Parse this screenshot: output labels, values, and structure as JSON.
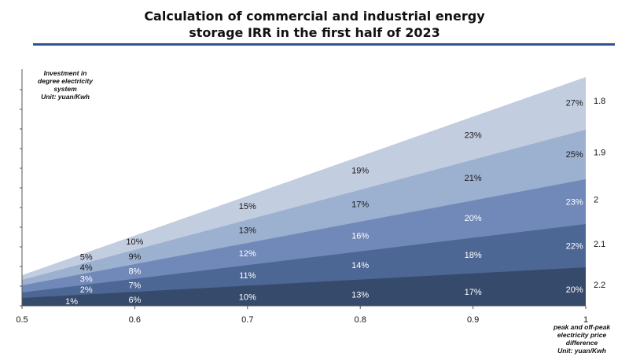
{
  "title_line1": "Calculation of commercial and industrial energy",
  "title_line2": "storage IRR in the first half of 2023",
  "y_axis_label": [
    "Investment in",
    "degree electricity",
    "system",
    "Unit: yuan/Kwh"
  ],
  "x_axis_label": [
    "peak and off-peak",
    "electricity price",
    "difference",
    "Unit: yuan/Kwh"
  ],
  "chart_data": {
    "type": "area",
    "x_ticks": [
      "0.5",
      "0.6",
      "0.7",
      "0.8",
      "0.9",
      "1"
    ],
    "xlim": [
      0.5,
      1.0
    ],
    "series": [
      {
        "name": "1.8",
        "color": "#c3cde0",
        "text_color": "#1a1a1a",
        "labels": [
          {
            "x": 0.557,
            "text": "5%"
          },
          {
            "x": 0.6,
            "text": "10%"
          },
          {
            "x": 0.7,
            "text": "15%"
          },
          {
            "x": 0.8,
            "text": "19%"
          },
          {
            "x": 0.9,
            "text": "23%"
          },
          {
            "x": 0.99,
            "text": "27%"
          }
        ]
      },
      {
        "name": "1.9",
        "color": "#9cb0cf",
        "text_color": "#1a1a1a",
        "labels": [
          {
            "x": 0.557,
            "text": "4%"
          },
          {
            "x": 0.6,
            "text": "9%"
          },
          {
            "x": 0.7,
            "text": "13%"
          },
          {
            "x": 0.8,
            "text": "17%"
          },
          {
            "x": 0.9,
            "text": "21%"
          },
          {
            "x": 0.99,
            "text": "25%"
          }
        ]
      },
      {
        "name": "2",
        "color": "#7089b9",
        "text_color": "#ffffff",
        "labels": [
          {
            "x": 0.557,
            "text": "3%"
          },
          {
            "x": 0.6,
            "text": "8%"
          },
          {
            "x": 0.7,
            "text": "12%"
          },
          {
            "x": 0.8,
            "text": "16%"
          },
          {
            "x": 0.9,
            "text": "20%"
          },
          {
            "x": 0.99,
            "text": "23%"
          }
        ]
      },
      {
        "name": "2.1",
        "color": "#4d6794",
        "text_color": "#ffffff",
        "labels": [
          {
            "x": 0.557,
            "text": "2%"
          },
          {
            "x": 0.6,
            "text": "7%"
          },
          {
            "x": 0.7,
            "text": "11%"
          },
          {
            "x": 0.8,
            "text": "14%"
          },
          {
            "x": 0.9,
            "text": "18%"
          },
          {
            "x": 0.99,
            "text": "22%"
          }
        ]
      },
      {
        "name": "2.2",
        "color": "#364a6b",
        "text_color": "#ffffff",
        "labels": [
          {
            "x": 0.544,
            "text": "1%"
          },
          {
            "x": 0.6,
            "text": "6%"
          },
          {
            "x": 0.7,
            "text": "10%"
          },
          {
            "x": 0.8,
            "text": "13%"
          },
          {
            "x": 0.9,
            "text": "17%"
          },
          {
            "x": 0.99,
            "text": "20%"
          }
        ]
      }
    ]
  }
}
